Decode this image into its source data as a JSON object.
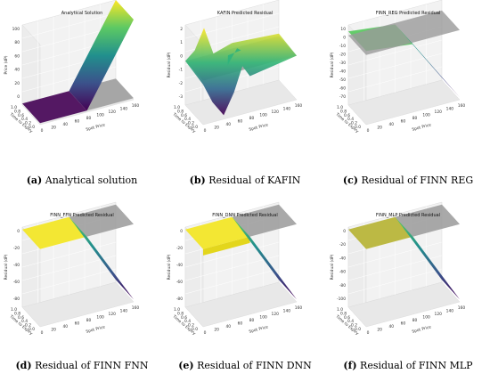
{
  "figure": {
    "panels": [
      {
        "id": "a",
        "title": "Analytical Solution",
        "caption_letter": "(a)",
        "caption_text": " Analytical solution",
        "zlabel": "Price (dP)",
        "xlabel": "Spot Price",
        "ylabel": "Time to Expiry",
        "zlim": [
          0,
          100
        ],
        "zticks": [
          "100",
          "80",
          "60",
          "40",
          "20",
          "0"
        ],
        "xticks": [
          "0",
          "20",
          "40",
          "60",
          "80",
          "100",
          "120",
          "140",
          "160"
        ],
        "yticks": [
          "1.0",
          "0.8",
          "0.6",
          "0.4",
          "0.2",
          "0.0"
        ]
      },
      {
        "id": "b",
        "title": "KAFIN Predicted Residual",
        "caption_letter": "(b)",
        "caption_text": " Residual of KAFIN",
        "zlabel": "Residual (dP)",
        "xlabel": "Spot Price",
        "ylabel": "Time to Expiry",
        "zlim": [
          -4,
          3
        ],
        "zticks": [
          "2",
          "1",
          "0",
          "-1",
          "-2",
          "-3"
        ],
        "xticks": [
          "0",
          "20",
          "40",
          "60",
          "80",
          "100",
          "120",
          "140",
          "160"
        ],
        "yticks": [
          "1.0",
          "0.8",
          "0.6",
          "0.4",
          "0.2",
          "0.0"
        ]
      },
      {
        "id": "c",
        "title": "FINN_REG Predicted Residual",
        "caption_letter": "(c)",
        "caption_text": " Residual of FINN REG",
        "zlabel": "Residual (dP)",
        "xlabel": "Spot Price",
        "ylabel": "Time to Expiry",
        "zlim": [
          -70,
          10
        ],
        "zticks": [
          "10",
          "0",
          "-10",
          "-20",
          "-30",
          "-40",
          "-50",
          "-60",
          "-70"
        ],
        "xticks": [
          "0",
          "20",
          "40",
          "60",
          "80",
          "100",
          "120",
          "140",
          "160"
        ],
        "yticks": [
          "1.0",
          "0.8",
          "0.6",
          "0.4",
          "0.2",
          "0.0"
        ]
      },
      {
        "id": "d",
        "title": "FINN_FFN Predicted Residual",
        "caption_letter": "(d)",
        "caption_text": " Residual of FINN FNN",
        "zlabel": "Residual (dP)",
        "xlabel": "Spot Price",
        "ylabel": "Time to Expiry",
        "zlim": [
          -100,
          0
        ],
        "zticks": [
          "0",
          "-20",
          "-40",
          "-60",
          "-80"
        ],
        "xticks": [
          "0",
          "20",
          "40",
          "60",
          "80",
          "100",
          "120",
          "140",
          "160"
        ],
        "yticks": [
          "1.0",
          "0.8",
          "0.6",
          "0.4",
          "0.2",
          "0.0"
        ]
      },
      {
        "id": "e",
        "title": "FINN_DNN Predicted Residual",
        "caption_letter": "(e)",
        "caption_text": " Residual of FINN DNN",
        "zlabel": "Residual (dP)",
        "xlabel": "Spot Price",
        "ylabel": "Time to Expiry",
        "zlim": [
          -100,
          0
        ],
        "zticks": [
          "0",
          "-20",
          "-40",
          "-60",
          "-80"
        ],
        "xticks": [
          "0",
          "20",
          "40",
          "60",
          "80",
          "100",
          "120",
          "140",
          "160"
        ],
        "yticks": [
          "1.0",
          "0.8",
          "0.6",
          "0.4",
          "0.2",
          "0.0"
        ]
      },
      {
        "id": "f",
        "title": "FINN_MLP Predicted Residual",
        "caption_letter": "(f)",
        "caption_text": " Residual of FINN MLP",
        "zlabel": "Residual (dP)",
        "xlabel": "Spot Price",
        "ylabel": "Time to Expiry",
        "zlim": [
          -100,
          0
        ],
        "zticks": [
          "0",
          "-20",
          "-40",
          "-60",
          "-80",
          "-100"
        ],
        "xticks": [
          "0",
          "20",
          "40",
          "60",
          "80",
          "100",
          "120",
          "140",
          "160"
        ],
        "yticks": [
          "1.0",
          "0.8",
          "0.6",
          "0.4",
          "0.2",
          "0.0"
        ]
      }
    ]
  },
  "chart_data": [
    {
      "type": "surface",
      "title": "Analytical Solution",
      "xlabel": "Spot Price",
      "ylabel": "Time to Expiry",
      "zlabel": "Price (dP)",
      "xlim": [
        0,
        160
      ],
      "ylim": [
        0,
        1
      ],
      "zlim": [
        0,
        100
      ],
      "x": [
        0,
        20,
        40,
        60,
        80,
        100,
        120,
        140,
        160
      ],
      "values_at_tau_0": [
        0,
        0,
        0,
        0,
        20,
        40,
        60,
        80,
        100
      ],
      "reference_plane_z": 0,
      "colormap": "viridis"
    },
    {
      "type": "surface",
      "title": "KAFIN Predicted Residual",
      "xlabel": "Spot Price",
      "ylabel": "Time to Expiry",
      "zlabel": "Residual (dP)",
      "xlim": [
        0,
        160
      ],
      "ylim": [
        0,
        1
      ],
      "zlim": [
        -4,
        3
      ],
      "x": [
        0,
        20,
        40,
        60,
        80,
        100,
        120,
        140,
        160
      ],
      "values_at_tau_0": [
        -0.5,
        -2.5,
        -3.5,
        -2.0,
        0.5,
        -0.5,
        0.0,
        0.0,
        0.0
      ],
      "values_at_tau_1": [
        0.0,
        2.5,
        0.5,
        0.0,
        0.5,
        0.2,
        0.0,
        0.0,
        0.0
      ],
      "reference_plane_z": 0,
      "colormap": "viridis"
    },
    {
      "type": "surface",
      "title": "FINN_REG Predicted Residual",
      "xlabel": "Spot Price",
      "ylabel": "Time to Expiry",
      "zlabel": "Residual (dP)",
      "xlim": [
        0,
        160
      ],
      "ylim": [
        0,
        1
      ],
      "zlim": [
        -70,
        10
      ],
      "x": [
        0,
        20,
        40,
        60,
        80,
        100,
        120,
        140,
        160
      ],
      "values_at_tau_0": [
        5,
        5,
        5,
        0,
        -15,
        -30,
        -45,
        -60,
        -70
      ],
      "reference_plane_z": 0,
      "colormap": "viridis"
    },
    {
      "type": "surface",
      "title": "FINN_FFN Predicted Residual",
      "xlabel": "Spot Price",
      "ylabel": "Time to Expiry",
      "zlabel": "Residual (dP)",
      "xlim": [
        0,
        160
      ],
      "ylim": [
        0,
        1
      ],
      "zlim": [
        -100,
        0
      ],
      "x": [
        0,
        20,
        40,
        60,
        80,
        100,
        120,
        140,
        160
      ],
      "values_at_tau_0": [
        0,
        0,
        0,
        0,
        -20,
        -40,
        -60,
        -80,
        -100
      ],
      "reference_plane_z": 0,
      "colormap": "viridis"
    },
    {
      "type": "surface",
      "title": "FINN_DNN Predicted Residual",
      "xlabel": "Spot Price",
      "ylabel": "Time to Expiry",
      "zlabel": "Residual (dP)",
      "xlim": [
        0,
        160
      ],
      "ylim": [
        0,
        1
      ],
      "zlim": [
        -100,
        0
      ],
      "x": [
        0,
        20,
        40,
        60,
        80,
        100,
        120,
        140,
        160
      ],
      "values_at_tau_0": [
        0,
        0,
        0,
        0,
        -20,
        -40,
        -60,
        -80,
        -100
      ],
      "reference_plane_z": 0,
      "colormap": "viridis"
    },
    {
      "type": "surface",
      "title": "FINN_MLP Predicted Residual",
      "xlabel": "Spot Price",
      "ylabel": "Time to Expiry",
      "zlabel": "Residual (dP)",
      "xlim": [
        0,
        160
      ],
      "ylim": [
        0,
        1
      ],
      "zlim": [
        -100,
        0
      ],
      "x": [
        0,
        20,
        40,
        60,
        80,
        100,
        120,
        140,
        160
      ],
      "values_at_tau_0": [
        0,
        0,
        0,
        0,
        -20,
        -40,
        -60,
        -80,
        -100
      ],
      "reference_plane_z": 0,
      "colormap": "viridis"
    }
  ]
}
